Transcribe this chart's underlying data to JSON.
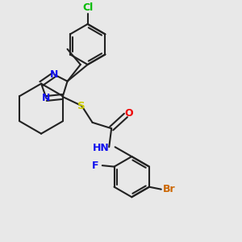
{
  "background_color": "#e8e8e8",
  "bond_color": "#222222",
  "bond_lw": 1.5,
  "figsize": [
    3.0,
    3.0
  ],
  "dpi": 100,
  "colors": {
    "N": "#1111ee",
    "S": "#cccc00",
    "O": "#ee0000",
    "Cl": "#00bb00",
    "F": "#1111ee",
    "Br": "#cc6600",
    "bond": "#222222"
  },
  "xlim": [
    -2.5,
    7.5
  ],
  "ylim": [
    -4.5,
    5.5
  ]
}
